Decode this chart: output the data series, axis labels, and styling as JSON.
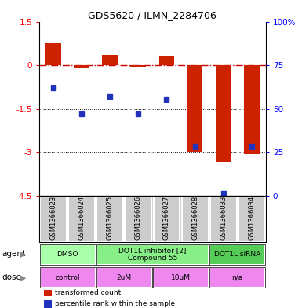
{
  "title": "GDS5620 / ILMN_2284706",
  "samples": [
    "GSM1366023",
    "GSM1366024",
    "GSM1366025",
    "GSM1366026",
    "GSM1366027",
    "GSM1366028",
    "GSM1366033",
    "GSM1366034"
  ],
  "bar_values": [
    0.75,
    -0.12,
    0.35,
    -0.05,
    0.3,
    -3.0,
    -3.35,
    -3.05
  ],
  "dot_values_pct": [
    62,
    47,
    57,
    47,
    55,
    28,
    1,
    28
  ],
  "ylim": [
    -4.5,
    1.5
  ],
  "yticks": [
    1.5,
    0,
    -1.5,
    -3.0,
    -4.5
  ],
  "ytick_labels_left": [
    "1.5",
    "0",
    "-1.5",
    "-3",
    "-4.5"
  ],
  "right_pct": [
    100,
    75,
    50,
    25,
    0
  ],
  "right_labels": [
    "100%",
    "75",
    "50",
    "25",
    "0"
  ],
  "bar_color": "#cc2200",
  "dot_color": "#2233bb",
  "agent_groups": [
    {
      "label": "DMSO",
      "start": 0,
      "end": 2,
      "color": "#aaffaa"
    },
    {
      "label": "DOT1L inhibitor [2]\nCompound 55",
      "start": 2,
      "end": 6,
      "color": "#88ee88"
    },
    {
      "label": "DOT1L siRNA",
      "start": 6,
      "end": 8,
      "color": "#55cc55"
    }
  ],
  "dose_groups": [
    {
      "label": "control",
      "start": 0,
      "end": 2,
      "color": "#ee88ee"
    },
    {
      "label": "2uM",
      "start": 2,
      "end": 4,
      "color": "#ee88ee"
    },
    {
      "label": "10uM",
      "start": 4,
      "end": 6,
      "color": "#ee88ee"
    },
    {
      "label": "n/a",
      "start": 6,
      "end": 8,
      "color": "#ee88ee"
    }
  ],
  "legend_items": [
    {
      "color": "#cc2200",
      "label": "transformed count"
    },
    {
      "color": "#2233bb",
      "label": "percentile rank within the sample"
    }
  ]
}
